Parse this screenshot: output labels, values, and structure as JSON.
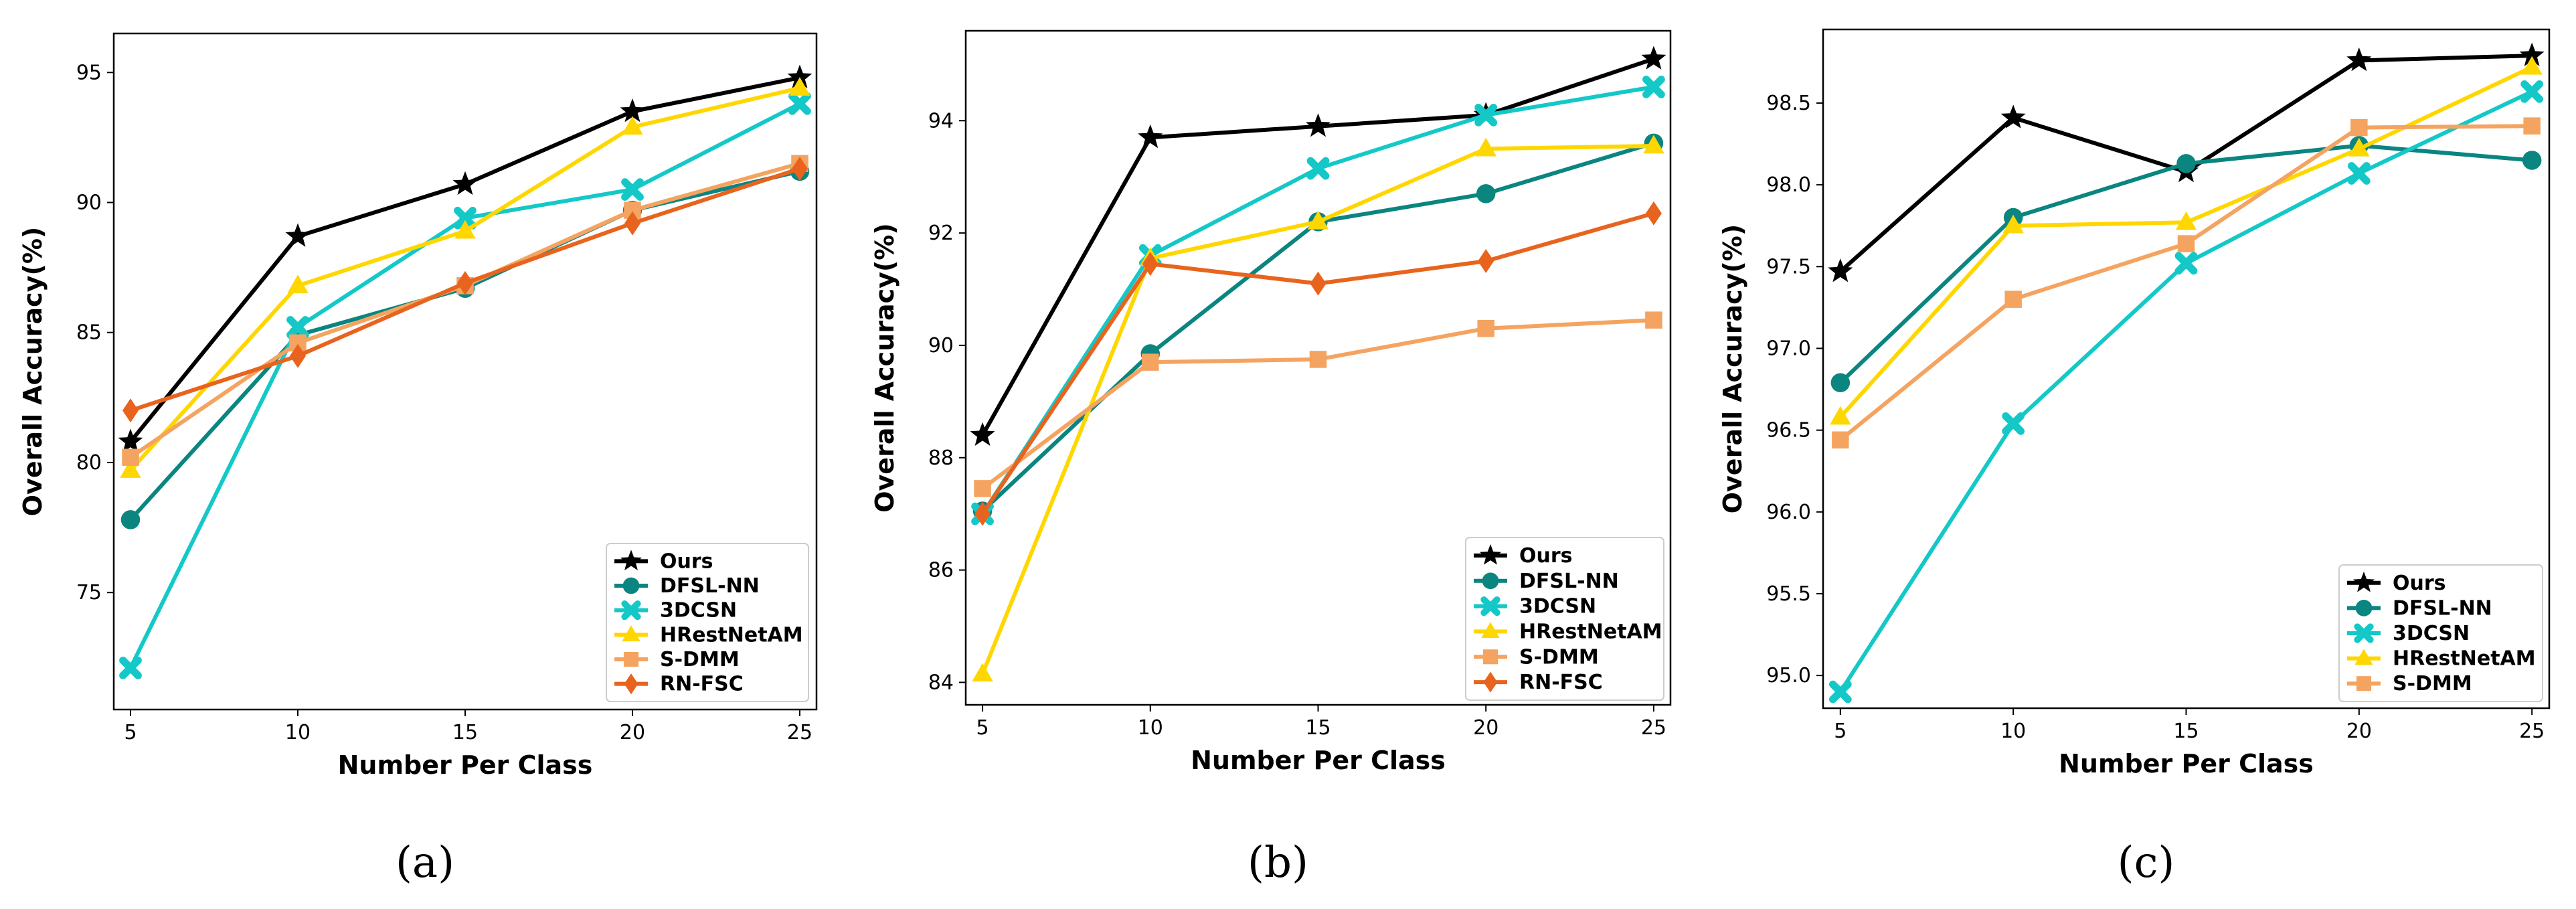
{
  "colors": {
    "Ours": "#000000",
    "DFSL-NN": "#0a8580",
    "3DCSN": "#14c8c8",
    "HRestNetAM": "#ffd700",
    "S-DMM": "#f4a460",
    "RN-FSC": "#e8641e"
  },
  "markers": {
    "Ours": "star",
    "DFSL-NN": "circle",
    "3DCSN": "x",
    "HRestNetAM": "triangle",
    "S-DMM": "square",
    "RN-FSC": "diamond"
  },
  "chart_data": [
    {
      "type": "line",
      "panel_label": "(a)",
      "xlabel": "Number Per Class",
      "ylabel": "Overall Accuracy(%)",
      "x": [
        5,
        10,
        15,
        20,
        25
      ],
      "xticks": [
        "5",
        "10",
        "15",
        "20",
        "25"
      ],
      "ylim": [
        70.5,
        96.5
      ],
      "yticks": [
        75,
        80,
        85,
        90,
        95
      ],
      "ytick_labels": [
        "75",
        "80",
        "85",
        "90",
        "95"
      ],
      "legend_position": "bottom-right",
      "series": [
        {
          "name": "Ours",
          "values": [
            80.8,
            88.7,
            90.7,
            93.5,
            94.8
          ]
        },
        {
          "name": "DFSL-NN",
          "values": [
            77.8,
            84.9,
            86.7,
            89.7,
            91.2
          ]
        },
        {
          "name": "3DCSN",
          "values": [
            72.1,
            85.2,
            89.4,
            90.5,
            93.8
          ]
        },
        {
          "name": "HRestNetAM",
          "values": [
            79.7,
            86.8,
            88.9,
            92.9,
            94.4
          ]
        },
        {
          "name": "S-DMM",
          "values": [
            80.2,
            84.6,
            86.8,
            89.7,
            91.5
          ]
        },
        {
          "name": "RN-FSC",
          "values": [
            82.0,
            84.1,
            86.9,
            89.2,
            91.3
          ]
        }
      ]
    },
    {
      "type": "line",
      "panel_label": "(b)",
      "xlabel": "Number Per Class",
      "ylabel": "Overall Accuracy(%)",
      "x": [
        5,
        10,
        15,
        20,
        25
      ],
      "xticks": [
        "5",
        "10",
        "15",
        "20",
        "25"
      ],
      "ylim": [
        83.6,
        95.6
      ],
      "yticks": [
        84,
        86,
        88,
        90,
        92,
        94
      ],
      "ytick_labels": [
        "84",
        "86",
        "88",
        "90",
        "92",
        "94"
      ],
      "legend_position": "bottom-right",
      "series": [
        {
          "name": "Ours",
          "values": [
            88.4,
            93.7,
            93.9,
            94.1,
            95.1
          ]
        },
        {
          "name": "DFSL-NN",
          "values": [
            87.05,
            89.85,
            92.2,
            92.7,
            93.6
          ]
        },
        {
          "name": "3DCSN",
          "values": [
            87.0,
            91.6,
            93.15,
            94.1,
            94.6
          ]
        },
        {
          "name": "HRestNetAM",
          "values": [
            84.15,
            91.55,
            92.2,
            93.5,
            93.55
          ]
        },
        {
          "name": "S-DMM",
          "values": [
            87.45,
            89.7,
            89.75,
            90.3,
            90.45
          ]
        },
        {
          "name": "RN-FSC",
          "values": [
            87.0,
            91.45,
            91.1,
            91.5,
            92.35
          ]
        }
      ]
    },
    {
      "type": "line",
      "panel_label": "(c)",
      "xlabel": "Number Per Class",
      "ylabel": "Overall Accuracy(%)",
      "x": [
        5,
        10,
        15,
        20,
        25
      ],
      "xticks": [
        "5",
        "10",
        "15",
        "20",
        "25"
      ],
      "ylim": [
        94.8,
        98.95
      ],
      "yticks": [
        95.0,
        95.5,
        96.0,
        96.5,
        97.0,
        97.5,
        98.0,
        98.5
      ],
      "ytick_labels": [
        "95.0",
        "95.5",
        "96.0",
        "96.5",
        "97.0",
        "97.5",
        "98.0",
        "98.5"
      ],
      "legend_position": "bottom-right",
      "series": [
        {
          "name": "Ours",
          "values": [
            97.47,
            98.41,
            98.08,
            98.76,
            98.79
          ]
        },
        {
          "name": "DFSL-NN",
          "values": [
            96.79,
            97.8,
            98.13,
            98.24,
            98.15
          ]
        },
        {
          "name": "3DCSN",
          "values": [
            94.9,
            96.54,
            97.52,
            98.07,
            98.57
          ]
        },
        {
          "name": "HRestNetAM",
          "values": [
            96.58,
            97.75,
            97.77,
            98.22,
            98.72
          ]
        },
        {
          "name": "S-DMM",
          "values": [
            96.44,
            97.3,
            97.64,
            98.35,
            98.36
          ]
        }
      ]
    }
  ]
}
